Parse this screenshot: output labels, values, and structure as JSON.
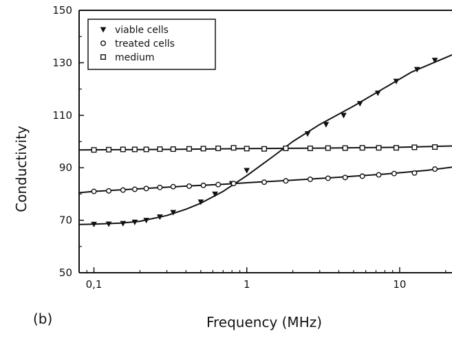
{
  "chart_data": {
    "type": "scatter",
    "panel_label": "(b)",
    "xlabel": "Frequency (MHz)",
    "ylabel": "Conductivity",
    "x_scale": "log",
    "xlim": [
      0.08,
      22
    ],
    "ylim": [
      50,
      150
    ],
    "x_ticks": [
      {
        "value": 0.1,
        "label": "0,1"
      },
      {
        "value": 1,
        "label": "1"
      },
      {
        "value": 10,
        "label": "10"
      }
    ],
    "y_ticks": [
      50,
      70,
      90,
      110,
      130,
      150
    ],
    "legend_position": "top-left",
    "series": [
      {
        "name": "viable cells",
        "marker": "triangle-down",
        "points": [
          [
            0.1,
            68.5
          ],
          [
            0.125,
            68.6
          ],
          [
            0.155,
            68.8
          ],
          [
            0.185,
            69.3
          ],
          [
            0.22,
            70.0
          ],
          [
            0.27,
            71.3
          ],
          [
            0.33,
            73.0
          ],
          [
            0.5,
            77.0
          ],
          [
            0.62,
            80.0
          ],
          [
            0.8,
            84.0
          ],
          [
            1.0,
            89.0
          ],
          [
            1.8,
            97.5
          ],
          [
            2.5,
            103.0
          ],
          [
            3.3,
            106.5
          ],
          [
            4.3,
            110.0
          ],
          [
            5.5,
            114.5
          ],
          [
            7.2,
            118.5
          ],
          [
            9.5,
            123.0
          ],
          [
            13.0,
            127.5
          ],
          [
            17.0,
            131.0
          ]
        ],
        "fit": [
          [
            0.08,
            68.4
          ],
          [
            0.1,
            68.5
          ],
          [
            0.15,
            68.9
          ],
          [
            0.2,
            69.6
          ],
          [
            0.3,
            71.8
          ],
          [
            0.4,
            74.2
          ],
          [
            0.5,
            76.5
          ],
          [
            0.7,
            81.0
          ],
          [
            1.0,
            87.0
          ],
          [
            1.5,
            94.5
          ],
          [
            2.0,
            100.0
          ],
          [
            3.0,
            106.5
          ],
          [
            5.0,
            113.5
          ],
          [
            8.0,
            120.5
          ],
          [
            12.0,
            126.5
          ],
          [
            22.0,
            133.0
          ]
        ]
      },
      {
        "name": "treated cells",
        "marker": "circle",
        "points": [
          [
            0.1,
            81.0
          ],
          [
            0.125,
            81.2
          ],
          [
            0.155,
            81.5
          ],
          [
            0.185,
            81.8
          ],
          [
            0.22,
            82.1
          ],
          [
            0.27,
            82.5
          ],
          [
            0.33,
            82.8
          ],
          [
            0.42,
            83.0
          ],
          [
            0.52,
            83.3
          ],
          [
            0.65,
            83.6
          ],
          [
            0.82,
            84.0
          ],
          [
            1.3,
            84.5
          ],
          [
            1.8,
            85.0
          ],
          [
            2.6,
            85.6
          ],
          [
            3.4,
            86.0
          ],
          [
            4.4,
            86.3
          ],
          [
            5.7,
            86.8
          ],
          [
            7.3,
            87.3
          ],
          [
            9.2,
            87.8
          ],
          [
            12.5,
            88.0
          ],
          [
            17.0,
            89.5
          ]
        ],
        "fit": [
          [
            0.08,
            80.5
          ],
          [
            0.1,
            81.0
          ],
          [
            0.2,
            82.0
          ],
          [
            0.4,
            83.0
          ],
          [
            0.7,
            83.7
          ],
          [
            1.0,
            84.3
          ],
          [
            2.0,
            85.3
          ],
          [
            4.0,
            86.4
          ],
          [
            8.0,
            87.6
          ],
          [
            15.0,
            89.0
          ],
          [
            22.0,
            90.2
          ]
        ]
      },
      {
        "name": "medium",
        "marker": "square",
        "points": [
          [
            0.1,
            96.8
          ],
          [
            0.125,
            96.9
          ],
          [
            0.155,
            97.0
          ],
          [
            0.185,
            97.0
          ],
          [
            0.22,
            97.0
          ],
          [
            0.27,
            97.1
          ],
          [
            0.33,
            97.1
          ],
          [
            0.42,
            97.2
          ],
          [
            0.52,
            97.3
          ],
          [
            0.65,
            97.4
          ],
          [
            0.82,
            97.6
          ],
          [
            1.0,
            97.3
          ],
          [
            1.3,
            97.2
          ],
          [
            1.8,
            97.4
          ],
          [
            2.6,
            97.4
          ],
          [
            3.4,
            97.5
          ],
          [
            4.4,
            97.5
          ],
          [
            5.7,
            97.6
          ],
          [
            7.3,
            97.6
          ],
          [
            9.5,
            97.6
          ],
          [
            12.5,
            97.8
          ],
          [
            17.0,
            97.9
          ]
        ],
        "fit": [
          [
            0.08,
            96.8
          ],
          [
            0.3,
            97.0
          ],
          [
            1.0,
            97.3
          ],
          [
            3.0,
            97.5
          ],
          [
            10.0,
            97.8
          ],
          [
            22.0,
            98.3
          ]
        ]
      }
    ]
  }
}
